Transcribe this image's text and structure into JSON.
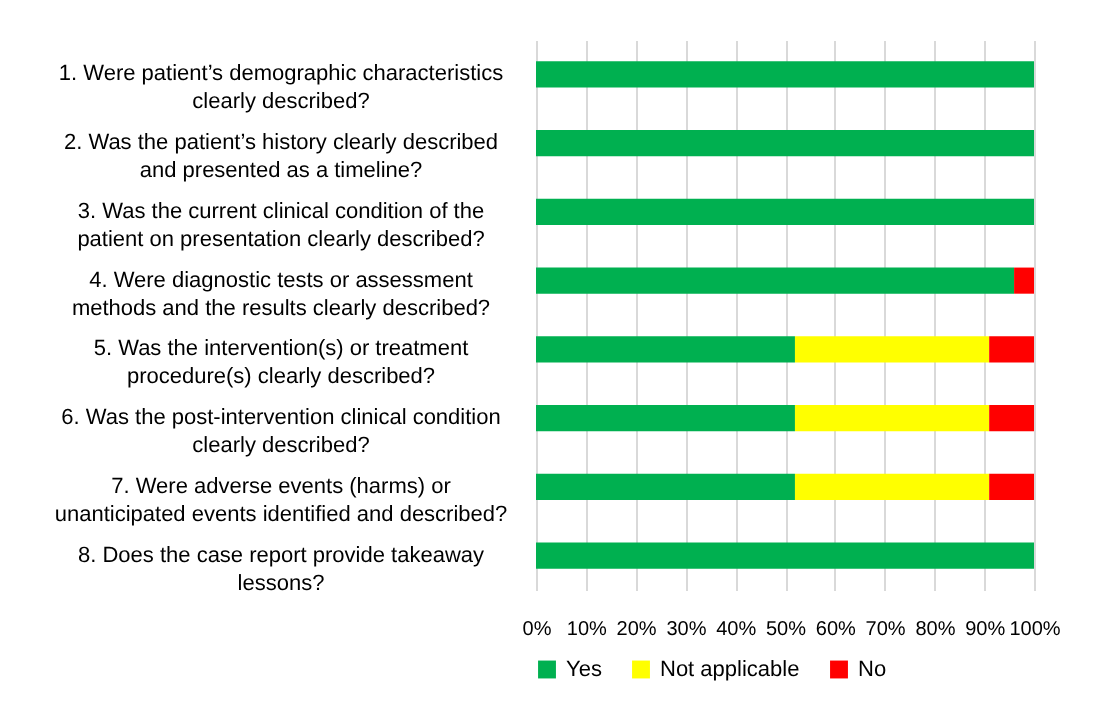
{
  "chart_data": {
    "type": "bar",
    "orientation": "horizontal",
    "stacked": true,
    "categories": [
      "1. Were patient’s demographic characteristics clearly described?",
      "2. Was the patient’s history clearly described and presented as a timeline?",
      "3. Was the current clinical condition of the patient on presentation clearly described?",
      "4. Were diagnostic tests or assessment methods and the results clearly described?",
      "5. Was the intervention(s) or treatment procedure(s) clearly described?",
      "6. Was the post-intervention clinical condition clearly described?",
      "7. Were adverse events (harms) or unanticipated events identified and described?",
      "8. Does the case report provide takeaway lessons?"
    ],
    "series": [
      {
        "name": "Yes",
        "color": "#00b050",
        "values": [
          100,
          100,
          100,
          96,
          52,
          52,
          52,
          100
        ]
      },
      {
        "name": "Not applicable",
        "color": "#ffff00",
        "values": [
          0,
          0,
          0,
          0,
          39,
          39,
          39,
          0
        ]
      },
      {
        "name": "No",
        "color": "#ff0000",
        "values": [
          0,
          0,
          0,
          4,
          9,
          9,
          9,
          0
        ]
      }
    ],
    "xlim": [
      0,
      100
    ],
    "xticks": [
      {
        "value": 0,
        "label": "0%"
      },
      {
        "value": 10,
        "label": "10%"
      },
      {
        "value": 20,
        "label": "20%"
      },
      {
        "value": 30,
        "label": "30%"
      },
      {
        "value": 40,
        "label": "40%"
      },
      {
        "value": 50,
        "label": "50%"
      },
      {
        "value": 60,
        "label": "60%"
      },
      {
        "value": 70,
        "label": "70%"
      },
      {
        "value": 80,
        "label": "80%"
      },
      {
        "value": 90,
        "label": "90%"
      },
      {
        "value": 100,
        "label": "100%"
      }
    ],
    "grid": "x",
    "legend": "bottom"
  }
}
